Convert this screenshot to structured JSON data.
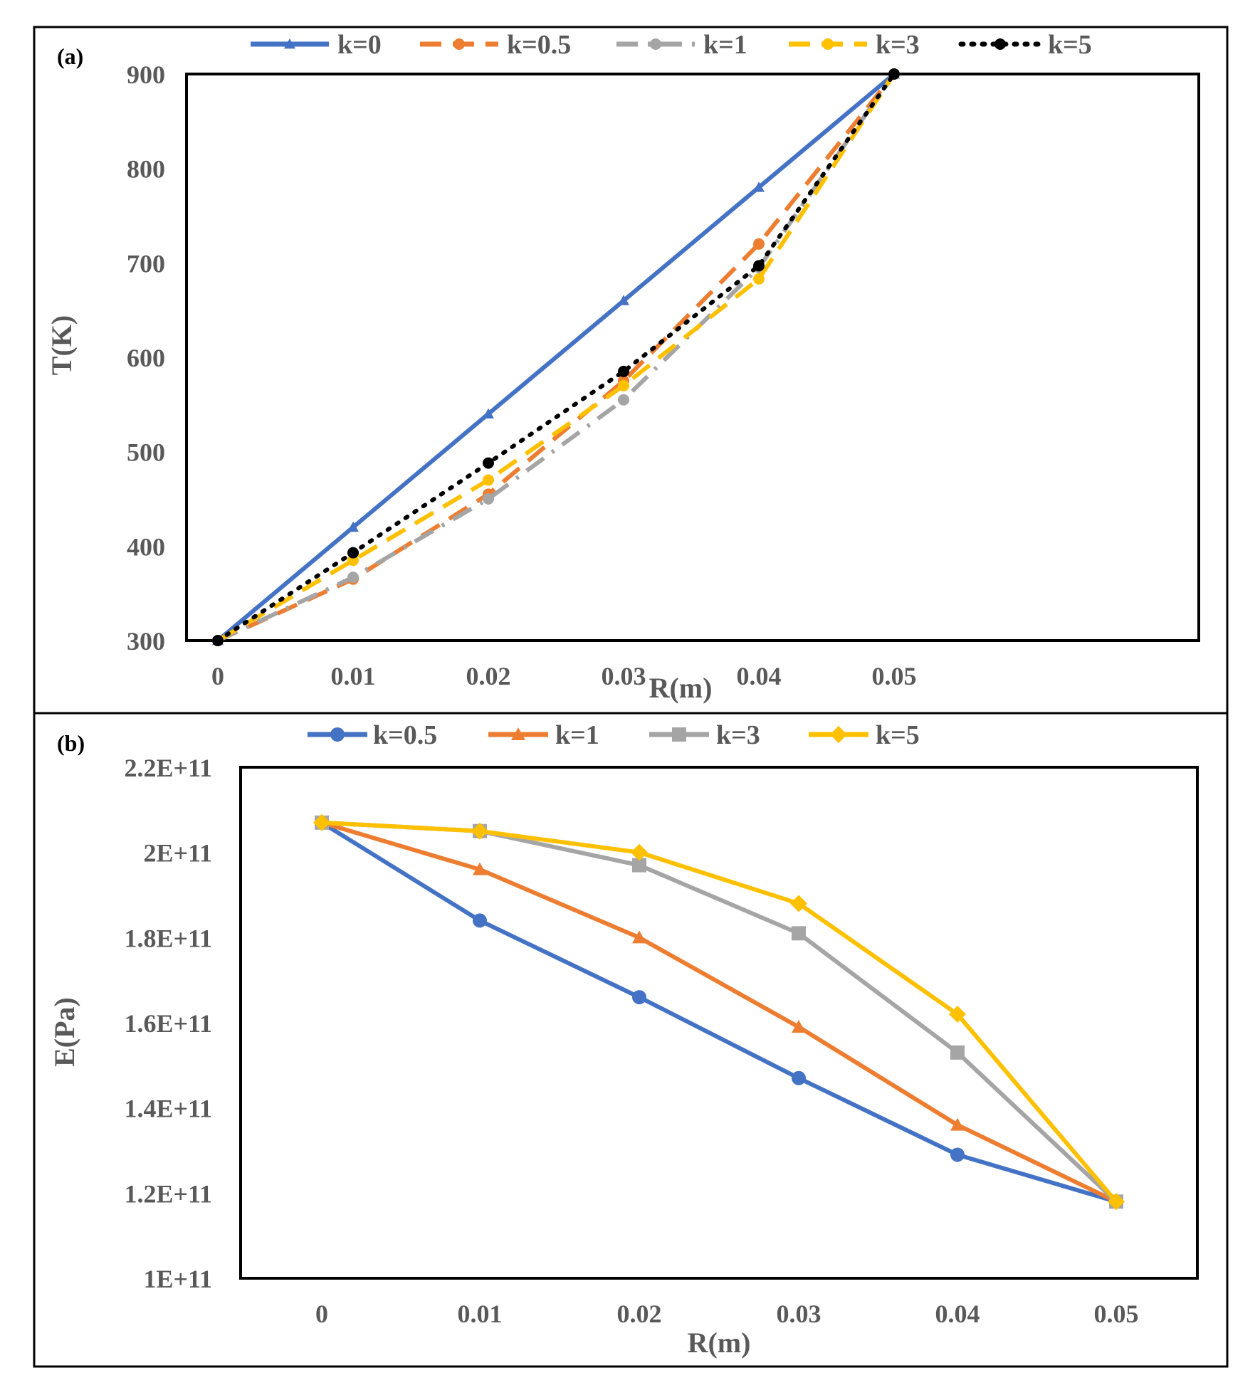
{
  "chart_data": [
    {
      "panel_label": "(a)",
      "type": "line",
      "title": "",
      "xlabel": "R(m)",
      "ylabel": "T(K)",
      "x": [
        0,
        0.01,
        0.02,
        0.03,
        0.04,
        0.05
      ],
      "x_tick_labels": [
        "0",
        "0.01",
        "0.02",
        "0.03",
        "0.04",
        "0.05"
      ],
      "y_tick_labels": [
        "300",
        "400",
        "500",
        "600",
        "700",
        "800",
        "900"
      ],
      "y_ticks": [
        300,
        400,
        500,
        600,
        700,
        800,
        900
      ],
      "ylim": [
        300,
        900
      ],
      "legend_position": "top",
      "series": [
        {
          "name": "k=0",
          "values": [
            300,
            420,
            540,
            660,
            780,
            900
          ],
          "color": "#4472C4",
          "style": "solid",
          "marker": "triangle"
        },
        {
          "name": "k=0.5",
          "values": [
            300,
            365,
            455,
            575,
            720,
            900
          ],
          "color": "#ED7D31",
          "style": "dashed",
          "marker": "circle"
        },
        {
          "name": "k=1",
          "values": [
            300,
            367,
            450,
            555,
            695,
            900
          ],
          "color": "#A5A5A5",
          "style": "dashdot",
          "marker": "circle"
        },
        {
          "name": "k=3",
          "values": [
            300,
            385,
            470,
            570,
            683,
            900
          ],
          "color": "#FFC000",
          "style": "dashed",
          "marker": "circle"
        },
        {
          "name": "k=5",
          "values": [
            300,
            393,
            488,
            585,
            697,
            900
          ],
          "color": "#000000",
          "style": "dotted",
          "marker": "circle"
        }
      ]
    },
    {
      "panel_label": "(b)",
      "type": "line",
      "title": "",
      "xlabel": "R(m)",
      "ylabel": "E(Pa)",
      "x": [
        0,
        0.01,
        0.02,
        0.03,
        0.04,
        0.05
      ],
      "x_tick_labels": [
        "0",
        "0.01",
        "0.02",
        "0.03",
        "0.04",
        "0.05"
      ],
      "y_tick_labels": [
        "1E+11",
        "1.2E+11",
        "1.4E+11",
        "1.6E+11",
        "1.8E+11",
        "2E+11",
        "2.2E+11"
      ],
      "y_ticks": [
        100000000000.0,
        120000000000.0,
        140000000000.0,
        160000000000.0,
        180000000000.0,
        200000000000.0,
        220000000000.0
      ],
      "ylim": [
        100000000000.0,
        220000000000.0
      ],
      "legend_position": "top",
      "series": [
        {
          "name": "k=0.5",
          "values": [
            207000000000.0,
            184000000000.0,
            166000000000.0,
            147000000000.0,
            129000000000.0,
            118000000000.0
          ],
          "color": "#4472C4",
          "marker": "circle"
        },
        {
          "name": "k=1",
          "values": [
            207000000000.0,
            196000000000.0,
            180000000000.0,
            159000000000.0,
            136000000000.0,
            118000000000.0
          ],
          "color": "#ED7D31",
          "marker": "triangle"
        },
        {
          "name": "k=3",
          "values": [
            207000000000.0,
            205000000000.0,
            197000000000.0,
            181000000000.0,
            153000000000.0,
            118000000000.0
          ],
          "color": "#A5A5A5",
          "marker": "square"
        },
        {
          "name": "k=5",
          "values": [
            207000000000.0,
            205000000000.0,
            200000000000.0,
            188000000000.0,
            162000000000.0,
            118000000000.0
          ],
          "color": "#FFC000",
          "marker": "diamond"
        }
      ]
    }
  ]
}
